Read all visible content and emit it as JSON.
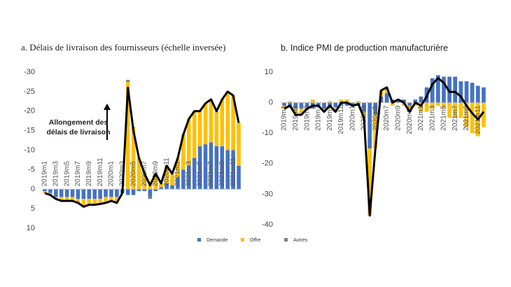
{
  "chart_data": [
    {
      "type": "bar",
      "title": "a. Délais de livraison des fournisseurs (échelle inversée)",
      "inverted": true,
      "categories": [
        "2019m1",
        null,
        "2019m3",
        null,
        "2019m5",
        null,
        "2019m7",
        null,
        "2019m9",
        null,
        "2019m11",
        null,
        "2020m1",
        null,
        "2020m3",
        null,
        "2020m5",
        null,
        "2020m7",
        null,
        "2020m9",
        null,
        "2020m11",
        null,
        "2021m1",
        null,
        "2021m3",
        null,
        "2021m5",
        null,
        "2021m7",
        null,
        "2021m9",
        null,
        "2021m11",
        null
      ],
      "series": [
        {
          "name": "Demande",
          "color": "#4472c4",
          "values": [
            0.5,
            1,
            2,
            2,
            2,
            2,
            2.5,
            2.5,
            2.5,
            2.5,
            2.5,
            2,
            2,
            2,
            1,
            1.5,
            1.5,
            0.5,
            0.5,
            2,
            0.5,
            -0.5,
            -1.5,
            -1,
            -3,
            -5,
            -6,
            -8,
            -11,
            -11.5,
            -12,
            -11,
            -11,
            -10,
            -10,
            -6
          ]
        },
        {
          "name": "Offre",
          "color": "#ffc000",
          "values": [
            0.5,
            0.5,
            0.5,
            1,
            1,
            1,
            1,
            2,
            1.5,
            1.5,
            1,
            1.5,
            1,
            1.5,
            0,
            -27.5,
            -16,
            -8,
            -4,
            -2,
            -4,
            -1,
            -4.5,
            -3,
            -5,
            -9,
            -12,
            -12,
            -9,
            -10.5,
            -11,
            -9,
            -12,
            -15,
            -14,
            -11
          ]
        },
        {
          "name": "Autres",
          "color": "#7f7f7f",
          "values": [
            0,
            0,
            0,
            0,
            0,
            0,
            0,
            0,
            0,
            0,
            0,
            0,
            0,
            0,
            0,
            -0.5,
            0,
            0,
            0,
            0.5,
            0,
            0,
            0,
            0,
            0,
            0,
            0,
            0,
            0,
            0,
            0,
            0,
            0,
            0,
            0,
            0
          ]
        }
      ],
      "line": {
        "color": "#000000",
        "values": [
          1,
          1.5,
          2.5,
          3,
          3,
          3,
          3.5,
          4.5,
          4,
          4,
          3.8,
          3.5,
          3,
          3.5,
          1,
          -26,
          -15,
          -8,
          -4,
          -1,
          -4,
          -1.5,
          -6,
          -4,
          -8,
          -14,
          -18,
          -20,
          -20,
          -22,
          -23,
          -20,
          -23,
          -25,
          -24,
          -17
        ]
      },
      "annotation": [
        "Allongement des",
        "délais de livraison"
      ],
      "ylim": [
        -30,
        10
      ],
      "yticks": [
        -30,
        -25,
        -20,
        -15,
        -10,
        -5,
        0,
        5,
        10
      ],
      "legend": true
    },
    {
      "type": "bar",
      "title": "b. Indice PMI de production manufacturière",
      "inverted": false,
      "categories": [
        "2019m1",
        null,
        "2019m3",
        null,
        "2019m5",
        null,
        "2019m7",
        null,
        "2019m9",
        null,
        "2019m11",
        null,
        "2020m1",
        null,
        "2020m3",
        null,
        "2020m5",
        null,
        "2020m7",
        null,
        "2020m9",
        null,
        "2020m11",
        null,
        "2021m1",
        null,
        "2021m3",
        null,
        "2021m5",
        null,
        "2021m7",
        null,
        "2021m9",
        null,
        "2021m11",
        null
      ],
      "series": [
        {
          "name": "Demande",
          "color": "#4472c4",
          "values": [
            -1,
            -1.5,
            -2,
            -2,
            -1.5,
            -2,
            -1,
            -2,
            -1.5,
            -1.5,
            -1,
            -1,
            -1,
            -1,
            -3,
            -15,
            -4,
            2,
            3,
            1,
            1,
            1,
            -1,
            1,
            2,
            5,
            8,
            9,
            8.5,
            8.5,
            8.5,
            7,
            7,
            6.5,
            5.5,
            5
          ]
        },
        {
          "name": "Offre",
          "color": "#ffc000",
          "values": [
            -1,
            0.5,
            -2,
            -2,
            -0.5,
            1,
            0,
            -1,
            0.5,
            -1.5,
            1,
            1,
            0,
            0.5,
            -2,
            -22,
            -11,
            2,
            2,
            -1,
            0,
            -1,
            -2,
            -1,
            -3,
            -3,
            -2,
            -1,
            -2,
            -5,
            -5,
            -5,
            -8,
            -10,
            -11,
            -8
          ]
        }
      ],
      "line": {
        "color": "#000000",
        "values": [
          -2,
          -1,
          -4,
          -4,
          -2,
          -1,
          -1,
          -3,
          -1,
          -3,
          0,
          0,
          -1,
          -0.5,
          -5,
          -37,
          -15,
          4,
          5,
          0,
          1,
          0,
          -3,
          0,
          -1,
          2,
          6,
          8,
          6.5,
          3.5,
          3.5,
          2,
          -1,
          -3.5,
          -5.5,
          -3
        ]
      },
      "ylim": [
        -40,
        10
      ],
      "yticks": [
        10,
        0,
        -10,
        -20,
        -30,
        -40
      ],
      "legend": false
    }
  ]
}
